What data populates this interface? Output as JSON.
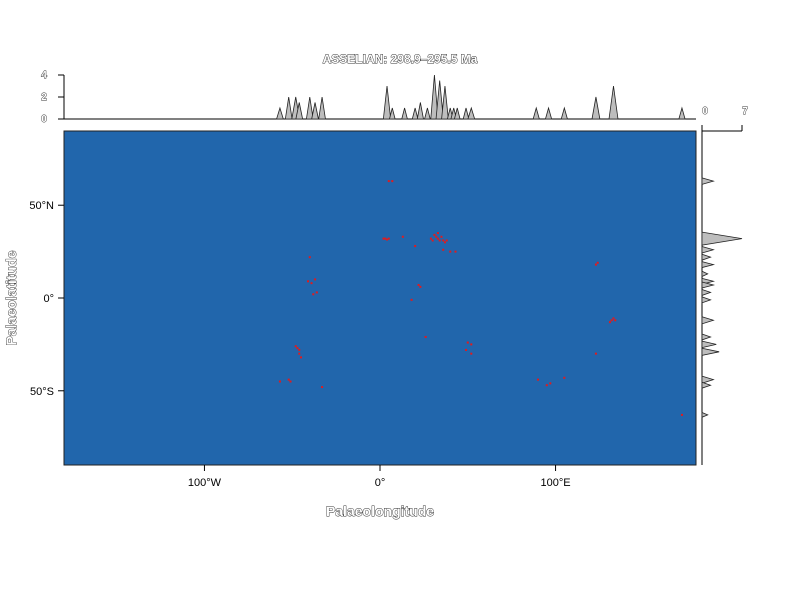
{
  "chart_data": {
    "type": "scatter",
    "title": "ASSELIAN: 298.9–295.5 Ma",
    "xlabel": "Palaeolongitude",
    "ylabel": "Palaeolatitude",
    "xlim": [
      -180,
      180
    ],
    "ylim": [
      -90,
      90
    ],
    "x_ticks": [
      {
        "value": -100,
        "label": "100°W"
      },
      {
        "value": 0,
        "label": "0°"
      },
      {
        "value": 100,
        "label": "100°E"
      }
    ],
    "y_ticks": [
      {
        "value": 50,
        "label": "50°N"
      },
      {
        "value": 0,
        "label": "0°"
      },
      {
        "value": -50,
        "label": "50°S"
      }
    ],
    "top_density_ticks": [
      0,
      2,
      4
    ],
    "right_density_ticks": [
      0,
      7
    ],
    "background_color": "#2166ac",
    "point_color": "#e31a1c",
    "density_fill": "#bdbdbd",
    "points": [
      [
        5,
        63
      ],
      [
        7,
        63
      ],
      [
        2,
        32
      ],
      [
        3,
        32
      ],
      [
        4,
        31.5
      ],
      [
        5,
        32
      ],
      [
        13,
        33
      ],
      [
        20,
        28
      ],
      [
        29,
        32
      ],
      [
        30,
        31
      ],
      [
        31,
        34
      ],
      [
        32,
        33
      ],
      [
        33,
        32
      ],
      [
        34,
        31
      ],
      [
        35,
        33
      ],
      [
        36,
        31
      ],
      [
        37,
        30
      ],
      [
        38,
        31
      ],
      [
        33,
        35
      ],
      [
        36,
        26
      ],
      [
        40,
        25
      ],
      [
        43,
        25
      ],
      [
        -40,
        22
      ],
      [
        -41,
        9
      ],
      [
        -39,
        8
      ],
      [
        -37,
        10
      ],
      [
        -38,
        2
      ],
      [
        -36,
        3
      ],
      [
        22,
        7
      ],
      [
        23,
        6
      ],
      [
        18,
        -1
      ],
      [
        26,
        -21
      ],
      [
        -48,
        -26
      ],
      [
        -47,
        -27
      ],
      [
        -46,
        -28
      ],
      [
        -46,
        -30
      ],
      [
        -45,
        -32
      ],
      [
        50,
        -24
      ],
      [
        52,
        -25
      ],
      [
        49,
        -28
      ],
      [
        52,
        -30
      ],
      [
        -57,
        -45
      ],
      [
        -52,
        -44
      ],
      [
        -51,
        -45
      ],
      [
        -33,
        -48
      ],
      [
        124,
        19
      ],
      [
        123,
        18
      ],
      [
        131,
        -13
      ],
      [
        132,
        -12
      ],
      [
        133,
        -11
      ],
      [
        134,
        -12
      ],
      [
        123,
        -30
      ],
      [
        90,
        -44
      ],
      [
        95,
        -47
      ],
      [
        97,
        -46
      ],
      [
        105,
        -43
      ],
      [
        172,
        -63
      ]
    ],
    "top_density": [
      {
        "x": -57,
        "w": 1.2,
        "h": 1
      },
      {
        "x": -52,
        "w": 1.2,
        "h": 2
      },
      {
        "x": -48,
        "w": 1.4,
        "h": 2
      },
      {
        "x": -46,
        "w": 1.2,
        "h": 1.5
      },
      {
        "x": -40,
        "w": 1.2,
        "h": 2
      },
      {
        "x": -37,
        "w": 1.2,
        "h": 1.5
      },
      {
        "x": -33,
        "w": 1.2,
        "h": 2
      },
      {
        "x": 4,
        "w": 1.3,
        "h": 3
      },
      {
        "x": 7,
        "w": 1.0,
        "h": 1
      },
      {
        "x": 14,
        "w": 1.0,
        "h": 1
      },
      {
        "x": 20,
        "w": 1.0,
        "h": 1
      },
      {
        "x": 23,
        "w": 1.1,
        "h": 1.5
      },
      {
        "x": 27,
        "w": 1.0,
        "h": 1
      },
      {
        "x": 31,
        "w": 1.3,
        "h": 4
      },
      {
        "x": 34,
        "w": 1.3,
        "h": 3.5
      },
      {
        "x": 37,
        "w": 1.2,
        "h": 3
      },
      {
        "x": 40,
        "w": 1.0,
        "h": 1
      },
      {
        "x": 42,
        "w": 1.0,
        "h": 1
      },
      {
        "x": 44,
        "w": 1.0,
        "h": 1
      },
      {
        "x": 49,
        "w": 1.0,
        "h": 1
      },
      {
        "x": 52,
        "w": 1.2,
        "h": 1
      },
      {
        "x": 89,
        "w": 1.1,
        "h": 1
      },
      {
        "x": 96,
        "w": 1.1,
        "h": 1
      },
      {
        "x": 105,
        "w": 1.1,
        "h": 1
      },
      {
        "x": 123,
        "w": 1.4,
        "h": 2
      },
      {
        "x": 133,
        "w": 1.6,
        "h": 3
      },
      {
        "x": 172,
        "w": 1.1,
        "h": 1
      }
    ],
    "right_density": [
      {
        "y": 63,
        "w": 1.1,
        "h": 2
      },
      {
        "y": 32,
        "w": 2.2,
        "h": 7
      },
      {
        "y": 26,
        "w": 1.1,
        "h": 2
      },
      {
        "y": 22,
        "w": 1.0,
        "h": 1.5
      },
      {
        "y": 18,
        "w": 1.0,
        "h": 2
      },
      {
        "y": 13,
        "w": 0.9,
        "h": 1
      },
      {
        "y": 9,
        "w": 1.0,
        "h": 2
      },
      {
        "y": 7,
        "w": 1.0,
        "h": 2
      },
      {
        "y": 3,
        "w": 1.0,
        "h": 1.5
      },
      {
        "y": -1,
        "w": 1.0,
        "h": 1.5
      },
      {
        "y": -12,
        "w": 1.2,
        "h": 2
      },
      {
        "y": -21,
        "w": 1.0,
        "h": 1.5
      },
      {
        "y": -25,
        "w": 1.1,
        "h": 2.5
      },
      {
        "y": -29,
        "w": 1.2,
        "h": 3
      },
      {
        "y": -44,
        "w": 1.2,
        "h": 2
      },
      {
        "y": -47,
        "w": 1.0,
        "h": 1.5
      },
      {
        "y": -63,
        "w": 0.8,
        "h": 1
      }
    ]
  }
}
